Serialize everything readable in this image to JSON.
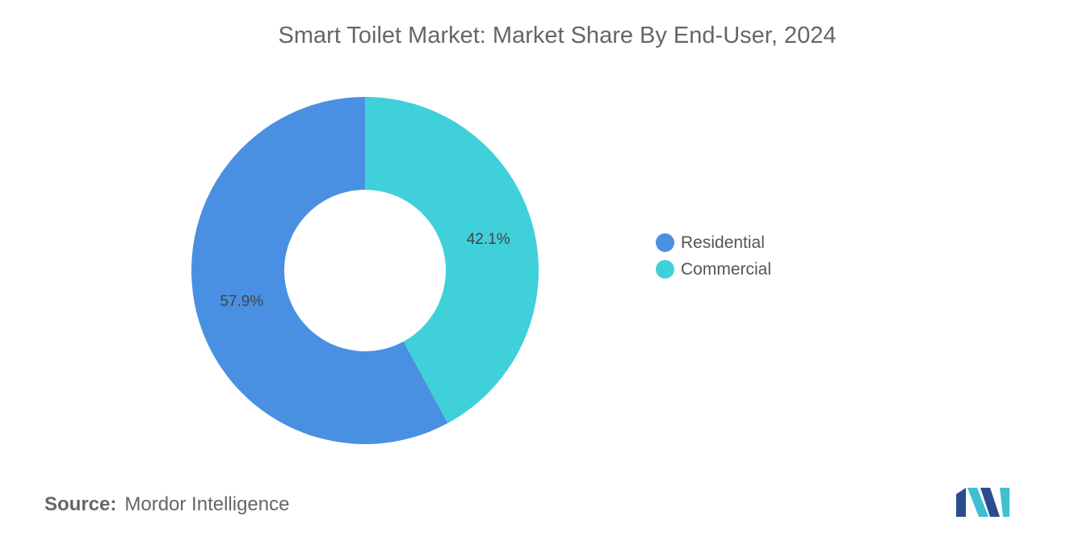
{
  "title": "Smart Toilet Market: Market Share By End-User, 2024",
  "source": {
    "label": "Source:",
    "value": "Mordor Intelligence"
  },
  "chart_data": {
    "type": "pie",
    "style": "donut",
    "title": "Smart Toilet Market: Market Share By End-User, 2024",
    "legend_position": "right",
    "slices": [
      {
        "label": "Residential",
        "value": 57.9,
        "display": "57.9%",
        "color": "#4a90e2"
      },
      {
        "label": "Commercial",
        "value": 42.1,
        "display": "42.1%",
        "color": "#40d0da"
      }
    ]
  },
  "colors": {
    "label_text": "#444444",
    "logo_dark": "#2a4d8f",
    "logo_light": "#3fbfd0"
  },
  "logo_icon": "mordor-intelligence-logo-icon"
}
